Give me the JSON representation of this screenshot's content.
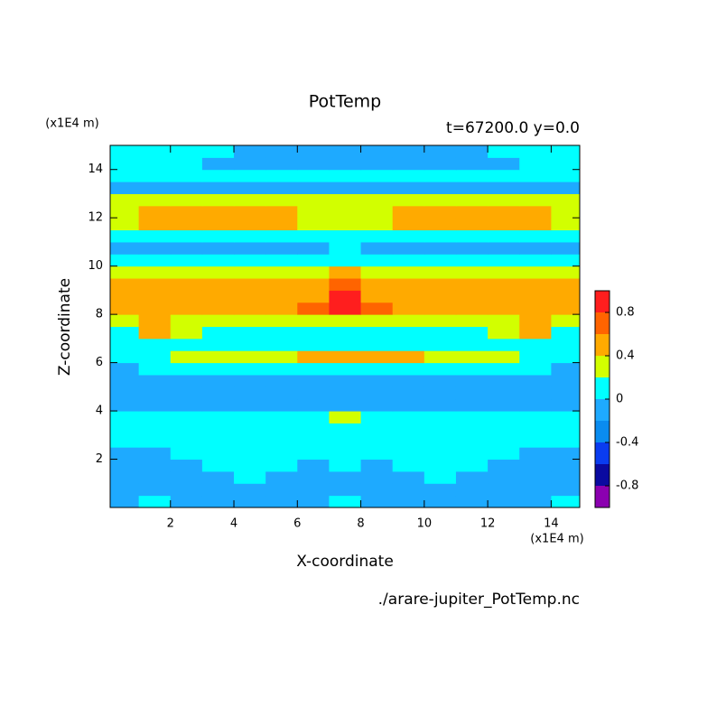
{
  "chart_data": {
    "type": "contourf",
    "title": "PotTemp",
    "subtitle": "t=67200.0 y=0.0",
    "x_unit": "(x1E4 m)",
    "y_unit": "(x1E4 m)",
    "xlabel": "X-coordinate",
    "ylabel": "Z-coordinate",
    "source": "./arare-jupiter_PotTemp.nc",
    "xlim": [
      0.1,
      14.9
    ],
    "ylim": [
      0,
      15
    ],
    "xticks": [
      2,
      4,
      6,
      8,
      10,
      12,
      14
    ],
    "yticks": [
      2,
      4,
      6,
      8,
      10,
      12,
      14
    ],
    "x": [
      0.5,
      1.5,
      2.5,
      3.5,
      4.5,
      5.5,
      6.5,
      7.5,
      8.5,
      9.5,
      10.5,
      11.5,
      12.5,
      13.5,
      14.5
    ],
    "z": [
      0.25,
      0.75,
      1.25,
      1.75,
      2.25,
      2.75,
      3.25,
      3.75,
      4.25,
      4.75,
      5.25,
      5.75,
      6.25,
      6.75,
      7.25,
      7.75,
      8.25,
      8.75,
      9.25,
      9.75,
      10.25,
      10.75,
      11.25,
      11.75,
      12.25,
      12.75,
      13.25,
      13.75,
      14.25,
      14.75
    ],
    "values": [
      [
        -0.1,
        0.1,
        -0.1,
        -0.1,
        -0.1,
        -0.1,
        -0.1,
        0.1,
        -0.1,
        -0.1,
        -0.1,
        -0.1,
        -0.1,
        -0.1,
        0.1
      ],
      [
        -0.1,
        -0.1,
        -0.1,
        -0.1,
        -0.1,
        -0.1,
        -0.1,
        -0.1,
        -0.1,
        -0.1,
        -0.1,
        -0.1,
        -0.1,
        -0.1,
        -0.1
      ],
      [
        -0.1,
        -0.1,
        -0.1,
        -0.1,
        0.1,
        -0.1,
        -0.1,
        -0.1,
        -0.1,
        -0.1,
        0.1,
        -0.1,
        -0.1,
        -0.1,
        -0.1
      ],
      [
        -0.1,
        -0.1,
        -0.1,
        0.1,
        0.1,
        0.1,
        -0.1,
        0.1,
        -0.1,
        0.1,
        0.1,
        0.1,
        -0.1,
        -0.1,
        -0.1
      ],
      [
        -0.1,
        -0.1,
        0.1,
        0.1,
        0.1,
        0.1,
        0.1,
        0.1,
        0.1,
        0.1,
        0.1,
        0.1,
        0.1,
        -0.1,
        -0.1
      ],
      [
        0.1,
        0.1,
        0.1,
        0.1,
        0.1,
        0.1,
        0.1,
        0.1,
        0.1,
        0.1,
        0.1,
        0.1,
        0.1,
        0.1,
        0.1
      ],
      [
        0.1,
        0.1,
        0.1,
        0.1,
        0.1,
        0.1,
        0.1,
        0.1,
        0.1,
        0.1,
        0.1,
        0.1,
        0.1,
        0.1,
        0.1
      ],
      [
        0.1,
        0.1,
        0.1,
        0.1,
        0.1,
        0.1,
        0.1,
        0.3,
        0.1,
        0.1,
        0.1,
        0.1,
        0.1,
        0.1,
        0.1
      ],
      [
        -0.1,
        -0.1,
        -0.1,
        -0.1,
        -0.1,
        -0.1,
        -0.1,
        -0.1,
        -0.1,
        -0.1,
        -0.1,
        -0.1,
        -0.1,
        -0.1,
        -0.1
      ],
      [
        -0.1,
        -0.1,
        -0.1,
        -0.1,
        -0.1,
        -0.1,
        -0.1,
        -0.1,
        -0.1,
        -0.1,
        -0.1,
        -0.1,
        -0.1,
        -0.1,
        -0.1
      ],
      [
        -0.1,
        -0.1,
        -0.1,
        -0.1,
        -0.1,
        -0.1,
        -0.1,
        -0.1,
        -0.1,
        -0.1,
        -0.1,
        -0.1,
        -0.1,
        -0.1,
        -0.1
      ],
      [
        -0.1,
        0.1,
        0.1,
        0.1,
        0.1,
        0.1,
        0.1,
        0.1,
        0.1,
        0.1,
        0.1,
        0.1,
        0.1,
        0.1,
        -0.1
      ],
      [
        0.1,
        0.1,
        0.3,
        0.3,
        0.3,
        0.3,
        0.5,
        0.5,
        0.5,
        0.5,
        0.3,
        0.3,
        0.3,
        0.1,
        0.1
      ],
      [
        0.1,
        0.1,
        0.1,
        0.1,
        0.1,
        0.1,
        0.1,
        0.1,
        0.1,
        0.1,
        0.1,
        0.1,
        0.1,
        0.1,
        0.1
      ],
      [
        0.1,
        0.5,
        0.3,
        0.1,
        0.1,
        0.1,
        0.1,
        0.1,
        0.1,
        0.1,
        0.1,
        0.1,
        0.3,
        0.5,
        0.1
      ],
      [
        0.3,
        0.5,
        0.3,
        0.3,
        0.3,
        0.3,
        0.3,
        0.3,
        0.3,
        0.3,
        0.3,
        0.3,
        0.3,
        0.5,
        0.3
      ],
      [
        0.5,
        0.5,
        0.5,
        0.5,
        0.5,
        0.5,
        0.7,
        0.9,
        0.7,
        0.5,
        0.5,
        0.5,
        0.5,
        0.5,
        0.5
      ],
      [
        0.5,
        0.5,
        0.5,
        0.5,
        0.5,
        0.5,
        0.5,
        0.9,
        0.5,
        0.5,
        0.5,
        0.5,
        0.5,
        0.5,
        0.5
      ],
      [
        0.5,
        0.5,
        0.5,
        0.5,
        0.5,
        0.5,
        0.5,
        0.7,
        0.5,
        0.5,
        0.5,
        0.5,
        0.5,
        0.5,
        0.5
      ],
      [
        0.3,
        0.3,
        0.3,
        0.3,
        0.3,
        0.3,
        0.3,
        0.5,
        0.3,
        0.3,
        0.3,
        0.3,
        0.3,
        0.3,
        0.3
      ],
      [
        0.1,
        0.1,
        0.1,
        0.1,
        0.1,
        0.1,
        0.1,
        0.1,
        0.1,
        0.1,
        0.1,
        0.1,
        0.1,
        0.1,
        0.1
      ],
      [
        -0.1,
        -0.1,
        -0.1,
        -0.1,
        -0.1,
        -0.1,
        -0.1,
        0.1,
        -0.1,
        -0.1,
        -0.1,
        -0.1,
        -0.1,
        -0.1,
        -0.1
      ],
      [
        0.1,
        0.1,
        0.1,
        0.1,
        0.1,
        0.1,
        0.1,
        0.1,
        0.1,
        0.1,
        0.1,
        0.1,
        0.1,
        0.1,
        0.1
      ],
      [
        0.3,
        0.5,
        0.5,
        0.5,
        0.5,
        0.5,
        0.3,
        0.3,
        0.3,
        0.5,
        0.5,
        0.5,
        0.5,
        0.5,
        0.3
      ],
      [
        0.3,
        0.5,
        0.5,
        0.5,
        0.5,
        0.5,
        0.3,
        0.3,
        0.3,
        0.5,
        0.5,
        0.5,
        0.5,
        0.5,
        0.3
      ],
      [
        0.3,
        0.3,
        0.3,
        0.3,
        0.3,
        0.3,
        0.3,
        0.3,
        0.3,
        0.3,
        0.3,
        0.3,
        0.3,
        0.3,
        0.3
      ],
      [
        -0.1,
        -0.1,
        -0.1,
        -0.1,
        -0.1,
        -0.1,
        -0.1,
        -0.1,
        -0.1,
        -0.1,
        -0.1,
        -0.1,
        -0.1,
        -0.1,
        -0.1
      ],
      [
        0.1,
        0.1,
        0.1,
        0.1,
        0.1,
        0.1,
        0.1,
        0.1,
        0.1,
        0.1,
        0.1,
        0.1,
        0.1,
        0.1,
        0.1
      ],
      [
        0.1,
        0.1,
        0.1,
        -0.1,
        -0.1,
        -0.1,
        -0.1,
        -0.1,
        -0.1,
        -0.1,
        -0.1,
        -0.1,
        -0.1,
        0.1,
        0.1
      ],
      [
        0.1,
        0.1,
        0.1,
        0.1,
        -0.1,
        -0.1,
        -0.1,
        -0.1,
        -0.1,
        -0.1,
        -0.1,
        -0.1,
        0.1,
        0.1,
        0.1
      ]
    ],
    "levels": [
      -1,
      -0.8,
      -0.6,
      -0.4,
      -0.2,
      0,
      0.2,
      0.4,
      0.6,
      0.8,
      1
    ],
    "colors": [
      "#8b00b0",
      "#0a0aa0",
      "#0a3cf0",
      "#0a8cf0",
      "#1eaaff",
      "#00ffff",
      "#d2ff00",
      "#ffaa00",
      "#ff6400",
      "#ff1e1e",
      "#ffb4b4"
    ],
    "colorbar_ticks": [
      -0.8,
      -0.4,
      0,
      0.4,
      0.8
    ]
  }
}
